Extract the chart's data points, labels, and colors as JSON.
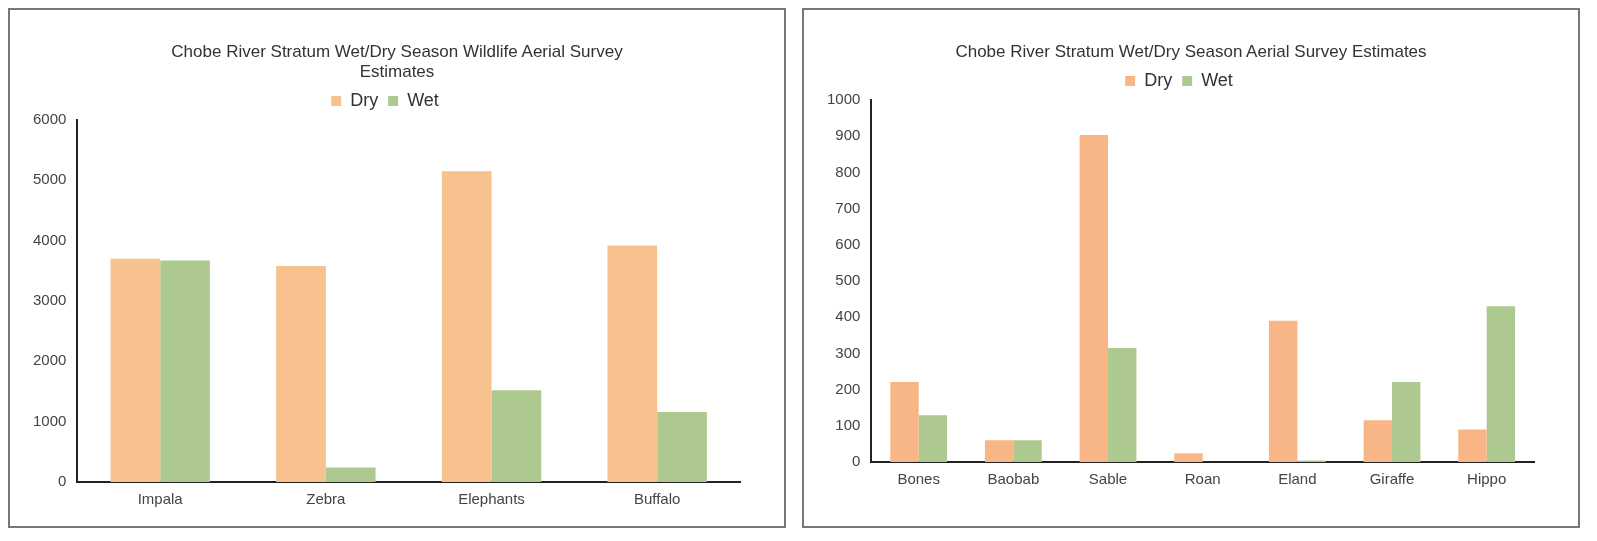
{
  "chart_data": [
    {
      "type": "bar",
      "title": "Chobe River Stratum Wet/Dry Season Wildlife Aerial Survey Estimates",
      "categories": [
        "Impala",
        "Zebra",
        "Elephants",
        "Buffalo"
      ],
      "series": [
        {
          "name": "Dry",
          "color": "#f8c28f",
          "values": [
            3700,
            3580,
            5150,
            3920
          ]
        },
        {
          "name": "Wet",
          "color": "#adc98f",
          "values": [
            3670,
            240,
            1520,
            1160
          ]
        }
      ],
      "ylim": [
        0,
        6000
      ],
      "yticks": [
        0,
        1000,
        2000,
        3000,
        4000,
        5000,
        6000
      ],
      "grid": false,
      "legend": "top"
    },
    {
      "type": "bar",
      "title": "Chobe River Stratum Wet/Dry Season Aerial Survey Estimates",
      "categories": [
        "Bones",
        "Baobab",
        "Sable",
        "Roan",
        "Eland",
        "Giraffe",
        "Hippo"
      ],
      "series": [
        {
          "name": "Dry",
          "color": "#f8b686",
          "values": [
            221,
            60,
            903,
            24,
            390,
            115,
            90
          ]
        },
        {
          "name": "Wet",
          "color": "#adc98f",
          "values": [
            129,
            60,
            315,
            0,
            4,
            221,
            430
          ]
        }
      ],
      "ylim": [
        0,
        1000
      ],
      "yticks": [
        0,
        100,
        200,
        300,
        400,
        500,
        600,
        700,
        800,
        900,
        1000
      ],
      "grid": false,
      "legend": "top"
    }
  ]
}
